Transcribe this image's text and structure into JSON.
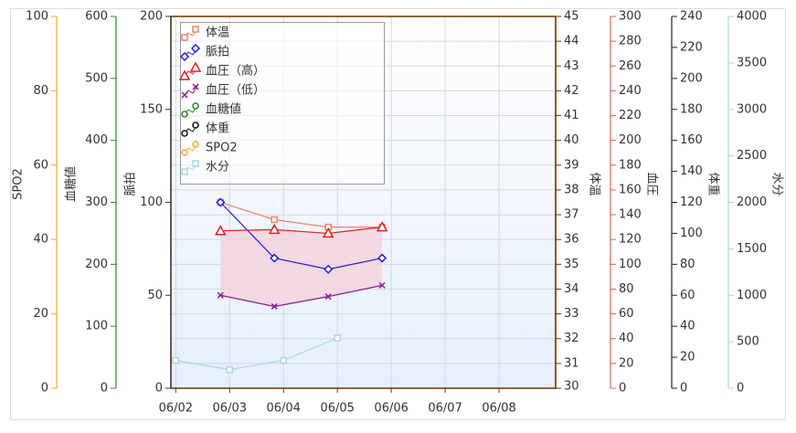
{
  "chart_data": {
    "type": "line",
    "xlim": [
      -0.09,
      7.05
    ],
    "xticks": [
      {
        "value": 0,
        "label": "06/02"
      },
      {
        "value": 1,
        "label": "06/03"
      },
      {
        "value": 2,
        "label": "06/04"
      },
      {
        "value": 3,
        "label": "06/05"
      },
      {
        "value": 4,
        "label": "06/06"
      },
      {
        "value": 5,
        "label": "06/07"
      },
      {
        "value": 6,
        "label": "06/08"
      }
    ],
    "axes": [
      {
        "label": "SPO2",
        "ylim": [
          0,
          100
        ],
        "yticks": [
          0,
          20,
          40,
          60,
          80,
          100
        ],
        "color": "#f0a830"
      },
      {
        "label": "血糖値",
        "ylim": [
          0,
          600
        ],
        "yticks": [
          0,
          100,
          200,
          300,
          400,
          500,
          600
        ],
        "color": "#228b22"
      },
      {
        "label": "脈拍",
        "ylim": [
          0,
          200
        ],
        "yticks": [
          0,
          50,
          100,
          150,
          200
        ],
        "color": "#333333"
      },
      {
        "label": "体温",
        "ylim": [
          30,
          45
        ],
        "yticks": [
          30,
          31,
          32,
          33,
          34,
          35,
          36,
          37,
          38,
          39,
          40,
          41,
          42,
          43,
          44,
          45
        ],
        "color": "#6b3300"
      },
      {
        "label": "血圧",
        "ylim": [
          0,
          300
        ],
        "yticks": [
          0,
          20,
          40,
          60,
          80,
          100,
          120,
          140,
          160,
          180,
          200,
          220,
          240,
          260,
          280,
          300
        ],
        "color": "#e06060"
      },
      {
        "label": "体重",
        "ylim": [
          0,
          240
        ],
        "yticks": [
          0,
          20,
          40,
          60,
          80,
          100,
          120,
          140,
          160,
          180,
          200,
          220,
          240
        ],
        "color": "#222222"
      },
      {
        "label": "水分",
        "ylim": [
          0,
          4000
        ],
        "yticks": [
          0,
          500,
          1000,
          1500,
          2000,
          2500,
          3000,
          3500,
          4000
        ],
        "color": "#a8d8e0"
      }
    ],
    "series": [
      {
        "name": "体温",
        "axis": 3,
        "color": "#f08070",
        "marker": "square",
        "x": [
          0.83,
          1.83,
          2.83,
          3.83
        ],
        "values": [
          37.5,
          36.8,
          36.5,
          36.5
        ]
      },
      {
        "name": "脈拍",
        "axis": 2,
        "color": "#2020d0",
        "marker": "diamond",
        "x": [
          0.83,
          1.83,
          2.83,
          3.83
        ],
        "values": [
          100,
          70,
          64,
          70
        ]
      },
      {
        "name": "血圧（高）",
        "axis": 4,
        "color": "#e02020",
        "marker": "triangle",
        "x": [
          0.83,
          1.83,
          2.83,
          3.83
        ],
        "values": [
          127,
          128,
          125,
          130
        ]
      },
      {
        "name": "血圧（低）",
        "axis": 4,
        "color": "#8b1a8b",
        "marker": "cross",
        "x": [
          0.83,
          1.83,
          2.83,
          3.83
        ],
        "values": [
          75,
          66,
          74,
          83
        ]
      },
      {
        "name": "血糖値",
        "axis": 1,
        "color": "#228b22",
        "marker": "circle",
        "x": [],
        "values": []
      },
      {
        "name": "体重",
        "axis": 5,
        "color": "#111111",
        "marker": "circle",
        "x": [],
        "values": []
      },
      {
        "name": "SPO2",
        "axis": 0,
        "color": "#f0a830",
        "marker": "circle",
        "x": [],
        "values": []
      },
      {
        "name": "水分",
        "axis": 6,
        "color": "#a8d8e0",
        "marker": "square",
        "x": [
          0,
          1,
          2,
          3
        ],
        "values": [
          300,
          200,
          300,
          540
        ]
      }
    ],
    "fill_between": [
      2,
      3
    ],
    "fill_color": "#f2d4de",
    "grid": true
  }
}
